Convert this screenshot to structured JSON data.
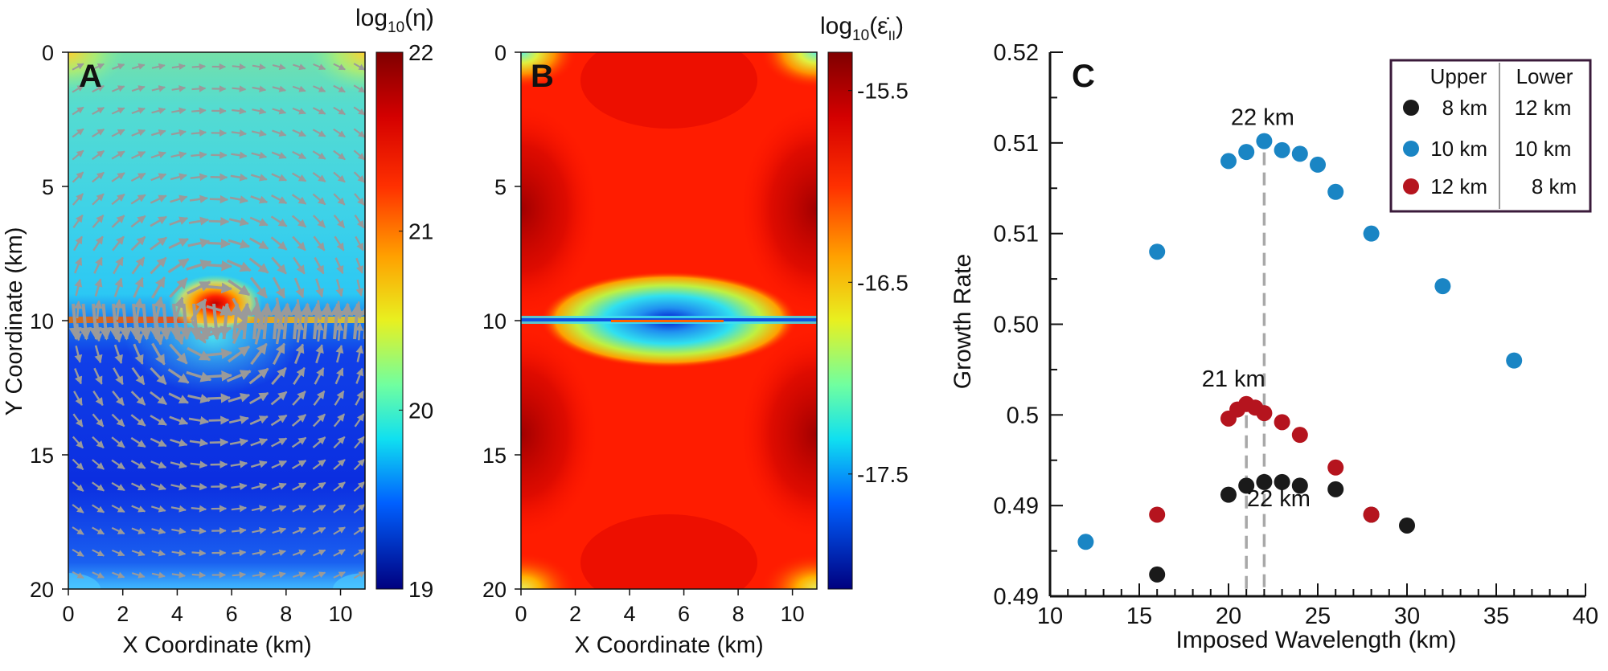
{
  "panels": {
    "a": {
      "letter": "A",
      "xlabel": "X  Coordinate (km)",
      "ylabel": "Y  Coordinate (km)",
      "xticks": [
        "0",
        "2",
        "4",
        "6",
        "8",
        "10"
      ],
      "yticks": [
        "0",
        "5",
        "10",
        "15",
        "20"
      ],
      "colorbar_title": "log",
      "colorbar_sub": "10",
      "colorbar_var": "(η)",
      "colorbar_ticks": [
        "22",
        "21",
        "20",
        "19"
      ]
    },
    "b": {
      "letter": "B",
      "xlabel": "X  Coordinate (km)",
      "xticks": [
        "0",
        "2",
        "4",
        "6",
        "8",
        "10"
      ],
      "yticks": [
        "0",
        "5",
        "10",
        "15",
        "20"
      ],
      "colorbar_title": "log",
      "colorbar_sub": "10",
      "colorbar_var": "(ε̇",
      "colorbar_var_sub": "II",
      "colorbar_var_close": ")",
      "colorbar_ticks": [
        "-15.5",
        "-16.5",
        "-17.5"
      ]
    }
  },
  "chart_data": {
    "type": "scatter",
    "letter": "C",
    "xlabel": "Imposed Wavelength (km)",
    "ylabel": "Growth Rate",
    "xlim": [
      10,
      40
    ],
    "ylim": [
      0.485,
      0.515
    ],
    "xtick_labels": [
      "10",
      "15",
      "20",
      "25",
      "30",
      "35",
      "40"
    ],
    "xtick_values": [
      10,
      15,
      20,
      25,
      30,
      35,
      40
    ],
    "ytick_labels": [
      "0.52",
      "0.51",
      "0.51",
      "0.50",
      "0.5",
      "0.49",
      "0.49"
    ],
    "ytick_values": [
      0.515,
      0.51,
      0.505,
      0.5,
      0.495,
      0.49,
      0.485
    ],
    "legend_position": "top-right",
    "legend": {
      "header_upper": "Upper",
      "header_lower": "Lower",
      "rows": [
        {
          "upper": "8 km",
          "lower": "12 km"
        },
        {
          "upper": "10 km",
          "lower": "10 km"
        },
        {
          "upper": "12 km",
          "lower": "8 km"
        }
      ]
    },
    "series": [
      {
        "color": "#1a1a1a",
        "x": [
          16,
          20,
          21,
          22,
          23,
          24,
          26,
          28,
          30
        ],
        "y": [
          0.4862,
          0.4906,
          0.4911,
          0.4913,
          0.4913,
          0.4911,
          0.4909,
          0.4895,
          0.4889
        ]
      },
      {
        "color": "#1a85c4",
        "x": [
          12,
          16,
          20,
          21,
          22,
          23,
          24,
          25,
          26,
          28,
          32,
          36
        ],
        "y": [
          0.488,
          0.504,
          0.509,
          0.5095,
          0.5101,
          0.5096,
          0.5094,
          0.5088,
          0.5073,
          0.505,
          0.5021,
          0.498
        ]
      },
      {
        "color": "#b5141e",
        "x": [
          16,
          20,
          20.5,
          21,
          21.5,
          22,
          23,
          24,
          26,
          28
        ],
        "y": [
          0.4895,
          0.4948,
          0.4953,
          0.4956,
          0.4954,
          0.4951,
          0.4946,
          0.4939,
          0.4921,
          0.4895
        ]
      }
    ],
    "annotations": [
      {
        "text": "22 km",
        "x": 22,
        "y": 0.5101
      },
      {
        "text": "21 km",
        "x": 21,
        "y": 0.4956
      },
      {
        "text": "22 km",
        "x": 22,
        "y": 0.4913
      }
    ],
    "guide_lines": [
      {
        "x": 22,
        "y_top": 0.5101
      },
      {
        "x": 21,
        "y_top": 0.4956
      }
    ]
  },
  "colors": {
    "arrow": "#9a9a9a",
    "dash": "#a8a8a8",
    "axis": "#111111",
    "legend_border": "#3a1a3a"
  }
}
